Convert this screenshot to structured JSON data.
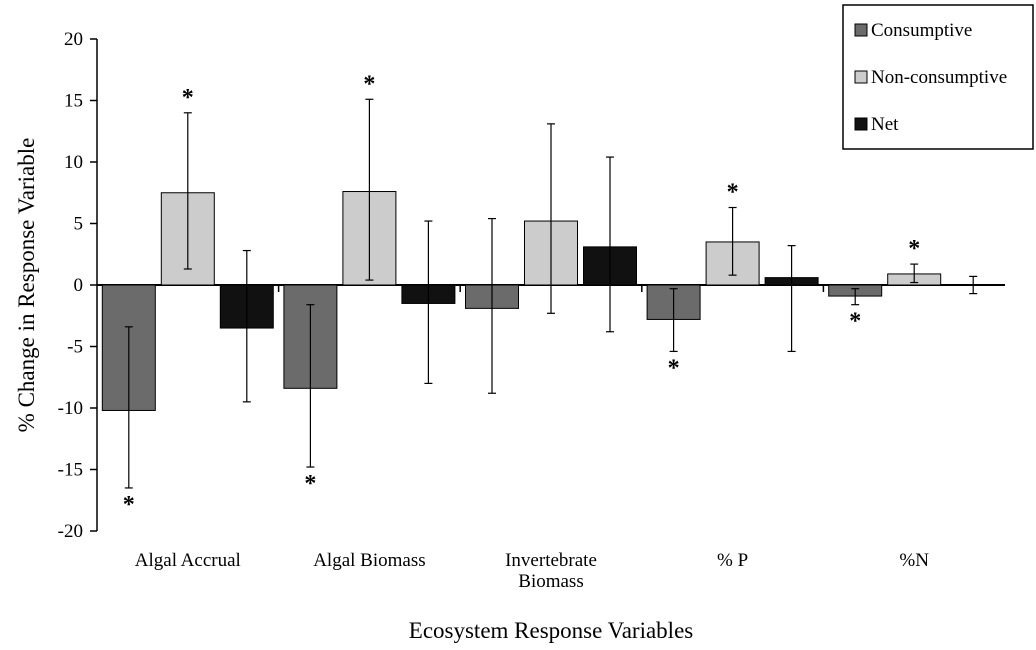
{
  "chart_data": {
    "type": "bar",
    "title": "",
    "xlabel": "Ecosystem Response Variables",
    "ylabel": "% Change in Response Variable",
    "ylim": [
      -20,
      20
    ],
    "yticks": [
      20,
      15,
      10,
      5,
      0,
      -5,
      -10,
      -15,
      -20
    ],
    "ytick_labels": [
      "20",
      "15",
      "10",
      "5",
      "0",
      "-5",
      "-10",
      "-15",
      "-20"
    ],
    "categories": [
      [
        "Algal Accrual"
      ],
      [
        "Algal Biomass"
      ],
      [
        "Invertebrate",
        "Biomass"
      ],
      [
        "% P"
      ],
      [
        "%N"
      ]
    ],
    "grid": false,
    "legend_position": "top-right",
    "series": [
      {
        "name": "Consumptive",
        "color": "#6b6b6b",
        "values": [
          -10.2,
          -8.4,
          -1.9,
          -2.8,
          -0.9
        ],
        "err_low": [
          -16.5,
          -14.8,
          -8.8,
          -5.4,
          -1.6
        ],
        "err_high": [
          -3.4,
          -1.6,
          5.4,
          -0.3,
          -0.3
        ],
        "significant": [
          true,
          true,
          false,
          true,
          true
        ]
      },
      {
        "name": "Non-consumptive",
        "color": "#cccccc",
        "values": [
          7.5,
          7.6,
          5.2,
          3.5,
          0.9
        ],
        "err_low": [
          1.3,
          0.4,
          -2.3,
          0.8,
          0.2
        ],
        "err_high": [
          14.0,
          15.1,
          13.1,
          6.3,
          1.7
        ],
        "significant": [
          true,
          true,
          false,
          true,
          true
        ]
      },
      {
        "name": "Net",
        "color": "#111111",
        "values": [
          -3.5,
          -1.5,
          3.1,
          0.6,
          0.0
        ],
        "err_low": [
          -9.5,
          -8.0,
          -3.8,
          -5.4,
          -0.7
        ],
        "err_high": [
          2.8,
          5.2,
          10.4,
          3.2,
          0.7
        ],
        "significant": [
          false,
          false,
          false,
          false,
          false
        ]
      }
    ],
    "significance_marker": "*"
  }
}
